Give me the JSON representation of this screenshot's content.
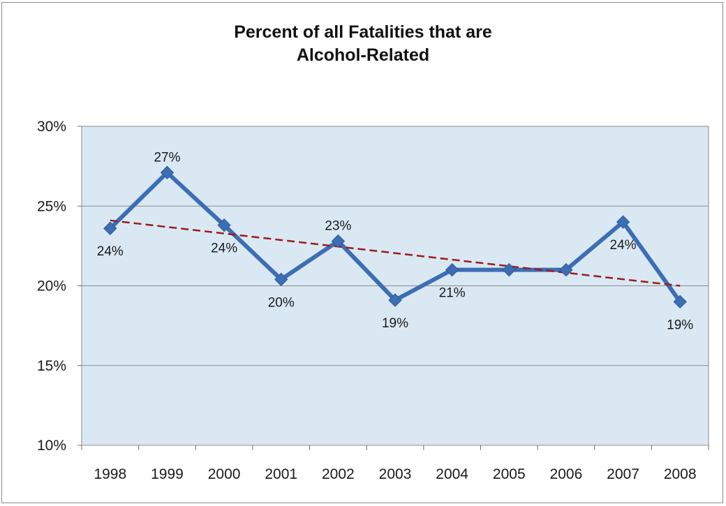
{
  "chart_data": {
    "type": "line",
    "title_lines": [
      "Percent of all Fatalities that are",
      "Alcohol-Related"
    ],
    "xlabel": "",
    "ylabel": "",
    "categories": [
      "1998",
      "1999",
      "2000",
      "2001",
      "2002",
      "2003",
      "2004",
      "2005",
      "2006",
      "2007",
      "2008"
    ],
    "series": [
      {
        "values": [
          23.6,
          27.1,
          23.8,
          20.4,
          22.8,
          19.1,
          21.0,
          21.0,
          21.0,
          24.0,
          19.0
        ],
        "data_labels": [
          "24%",
          "27%",
          "24%",
          "20%",
          "23%",
          "19%",
          "21%",
          "",
          "",
          "24%",
          "19%"
        ],
        "label_position": [
          "below",
          "above",
          "below",
          "below",
          "above",
          "below",
          "below",
          "none",
          "none",
          "below",
          "below"
        ],
        "color": "#3d6eb4"
      }
    ],
    "trendline": {
      "type": "linear",
      "start": 24.1,
      "end": 20.0,
      "color": "#9b1c1c",
      "style": "dashed"
    },
    "ylim": [
      10,
      30
    ],
    "yticks": [
      10,
      15,
      20,
      25,
      30
    ],
    "ytick_labels": [
      "10%",
      "15%",
      "20%",
      "25%",
      "30%"
    ],
    "grid": true,
    "plot_background": "#d9e8f3",
    "legend": "none"
  }
}
